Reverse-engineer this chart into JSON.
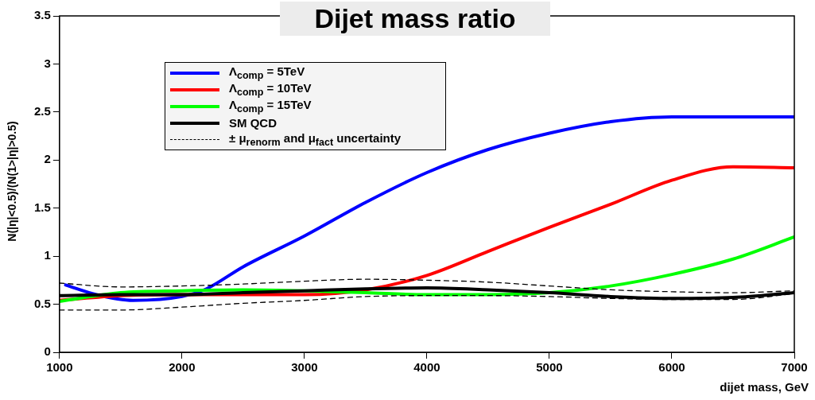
{
  "chart_data": {
    "type": "line",
    "title": "Dijet mass ratio",
    "xlabel": "dijet mass, GeV",
    "ylabel": "N(|η|<0.5)/(N(1>|η|>0.5)",
    "x": [
      1000,
      1500,
      2000,
      2500,
      3000,
      3500,
      4000,
      4500,
      5000,
      5500,
      6000,
      6500,
      7000
    ],
    "xlim": [
      1000,
      7000
    ],
    "xticks": [
      1000,
      2000,
      3000,
      4000,
      5000,
      6000,
      7000
    ],
    "ylim": [
      0,
      3.5
    ],
    "yticks": [
      0,
      0.5,
      1,
      1.5,
      2,
      2.5,
      3,
      3.5
    ],
    "grid": false,
    "legend": "top left",
    "marker": "none",
    "series": [
      {
        "name": "Λ$_{comp}$ = 5TeV",
        "color": "#0000ff",
        "line_style": "solid",
        "x": [
          1050,
          1300,
          1600,
          2000,
          2200,
          2500,
          3000,
          3500,
          4000,
          4500,
          5000,
          5500,
          6000,
          6500,
          7000
        ],
        "values": [
          0.7,
          0.6,
          0.54,
          0.58,
          0.66,
          0.89,
          1.21,
          1.56,
          1.87,
          2.11,
          2.28,
          2.4,
          2.45,
          2.45,
          2.45
        ]
      },
      {
        "name": "Λ$_{comp}$ = 10TeV",
        "color": "#ff0000",
        "line_style": "solid",
        "values": [
          0.54,
          0.59,
          0.6,
          0.6,
          0.6,
          0.65,
          0.8,
          1.05,
          1.3,
          1.54,
          1.79,
          1.93,
          1.92
        ]
      },
      {
        "name": "Λ$_{comp}$ = 15TeV",
        "color": "#00ff00",
        "line_style": "solid",
        "values": [
          0.53,
          0.62,
          0.64,
          0.65,
          0.64,
          0.62,
          0.6,
          0.6,
          0.62,
          0.69,
          0.81,
          0.97,
          1.2
        ]
      },
      {
        "name": "SM QCD",
        "color": "#000000",
        "line_style": "solid",
        "values": [
          0.59,
          0.6,
          0.6,
          0.62,
          0.64,
          0.66,
          0.67,
          0.65,
          0.62,
          0.58,
          0.56,
          0.57,
          0.62
        ]
      },
      {
        "name": "± μ$_{renorm}$ and μ$_{fact}$ uncertainty",
        "color": "#000000",
        "line_style": "dashed",
        "values": [
          0.72,
          0.68,
          0.69,
          0.71,
          0.74,
          0.76,
          0.75,
          0.73,
          0.69,
          0.65,
          0.63,
          0.62,
          0.64
        ]
      },
      {
        "color": "#000000",
        "line_style": "dashed",
        "values": [
          0.44,
          0.44,
          0.47,
          0.51,
          0.54,
          0.58,
          0.59,
          0.59,
          0.58,
          0.56,
          0.55,
          0.55,
          0.61
        ]
      }
    ]
  }
}
